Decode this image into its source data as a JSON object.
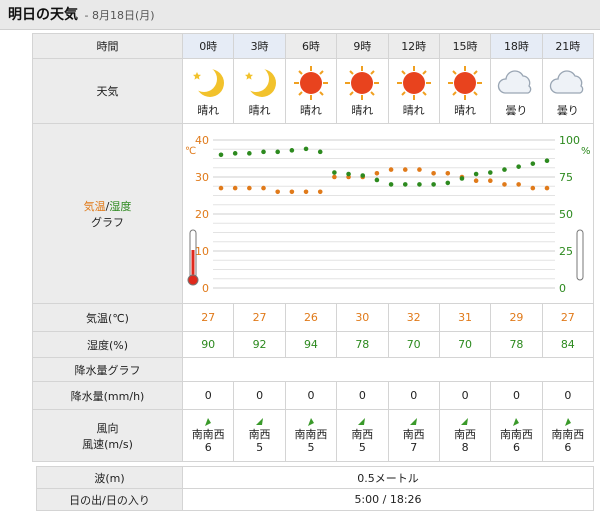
{
  "header": {
    "title": "明日の天気",
    "separator": "-",
    "date": "8月18日(月)"
  },
  "labels": {
    "hour": "時間",
    "weather": "天気",
    "graph_temp": "気温",
    "graph_slash": "/",
    "graph_hum": "湿度",
    "graph_word": "グラフ",
    "temperature": "気温(℃)",
    "humidity": "湿度(%)",
    "precip_graph": "降水量グラフ",
    "precip": "降水量(mm/h)",
    "wind_dir": "風向",
    "wind_speed": "風速(m/s)"
  },
  "hours": [
    {
      "time": "0時",
      "weather": "晴れ",
      "icon": "moon-icon",
      "temp": "27",
      "hum": "90",
      "precip": "0",
      "wind_dir": "南南西",
      "wind_speed": "6"
    },
    {
      "time": "3時",
      "weather": "晴れ",
      "icon": "moon-icon",
      "temp": "27",
      "hum": "92",
      "precip": "0",
      "wind_dir": "南西",
      "wind_speed": "5"
    },
    {
      "time": "6時",
      "weather": "晴れ",
      "icon": "sun-icon",
      "temp": "26",
      "hum": "94",
      "precip": "0",
      "wind_dir": "南南西",
      "wind_speed": "5"
    },
    {
      "time": "9時",
      "weather": "晴れ",
      "icon": "sun-icon",
      "temp": "30",
      "hum": "78",
      "precip": "0",
      "wind_dir": "南西",
      "wind_speed": "5"
    },
    {
      "time": "12時",
      "weather": "晴れ",
      "icon": "sun-icon",
      "temp": "32",
      "hum": "70",
      "precip": "0",
      "wind_dir": "南西",
      "wind_speed": "7"
    },
    {
      "time": "15時",
      "weather": "晴れ",
      "icon": "sun-icon",
      "temp": "31",
      "hum": "70",
      "precip": "0",
      "wind_dir": "南西",
      "wind_speed": "8"
    },
    {
      "time": "18時",
      "weather": "曇り",
      "icon": "cloud-icon",
      "temp": "29",
      "hum": "78",
      "precip": "0",
      "wind_dir": "南南西",
      "wind_speed": "6"
    },
    {
      "time": "21時",
      "weather": "曇り",
      "icon": "cloud-icon",
      "temp": "27",
      "hum": "84",
      "precip": "0",
      "wind_dir": "南南西",
      "wind_speed": "6"
    }
  ],
  "chart_data": {
    "type": "line",
    "title": "",
    "left_axis": {
      "unit": "℃",
      "ticks": [
        "40",
        "30",
        "20",
        "10",
        "0"
      ],
      "range": [
        0,
        40
      ]
    },
    "right_axis": {
      "unit": "%",
      "ticks": [
        "100",
        "75",
        "50",
        "25",
        "0"
      ],
      "range": [
        0,
        100
      ]
    },
    "x": [
      0,
      1.5,
      3,
      4.5,
      6,
      7.5,
      9,
      10.5,
      12,
      13.5,
      15,
      16.5,
      18,
      19.5,
      21,
      22.5,
      24,
      25.5,
      27,
      28.5,
      30,
      31.5,
      33,
      34.5
    ],
    "series": [
      {
        "values": [
          27,
          27,
          27,
          27,
          26,
          26,
          26,
          26,
          30,
          30,
          30,
          31,
          32,
          32,
          32,
          31,
          31,
          30,
          29,
          29,
          28,
          28,
          27,
          27
        ],
        "color": "#e07a1a"
      },
      {
        "values": [
          90,
          91,
          91,
          92,
          92,
          93,
          94,
          92,
          78,
          77,
          76,
          73,
          70,
          70,
          70,
          70,
          71,
          74,
          77,
          78,
          80,
          82,
          84,
          86
        ],
        "color": "#2d8a1f"
      }
    ],
    "grid": true
  },
  "extra": {
    "wave_label": "波(m)",
    "wave_value": "0.5メートル",
    "sun_label": "日の出/日の入り",
    "sun_value": "5:00 / 18:26"
  },
  "colors": {
    "temp": "#e07a1a",
    "hum": "#2d8a1f",
    "night_header": "#e6ecf6"
  }
}
